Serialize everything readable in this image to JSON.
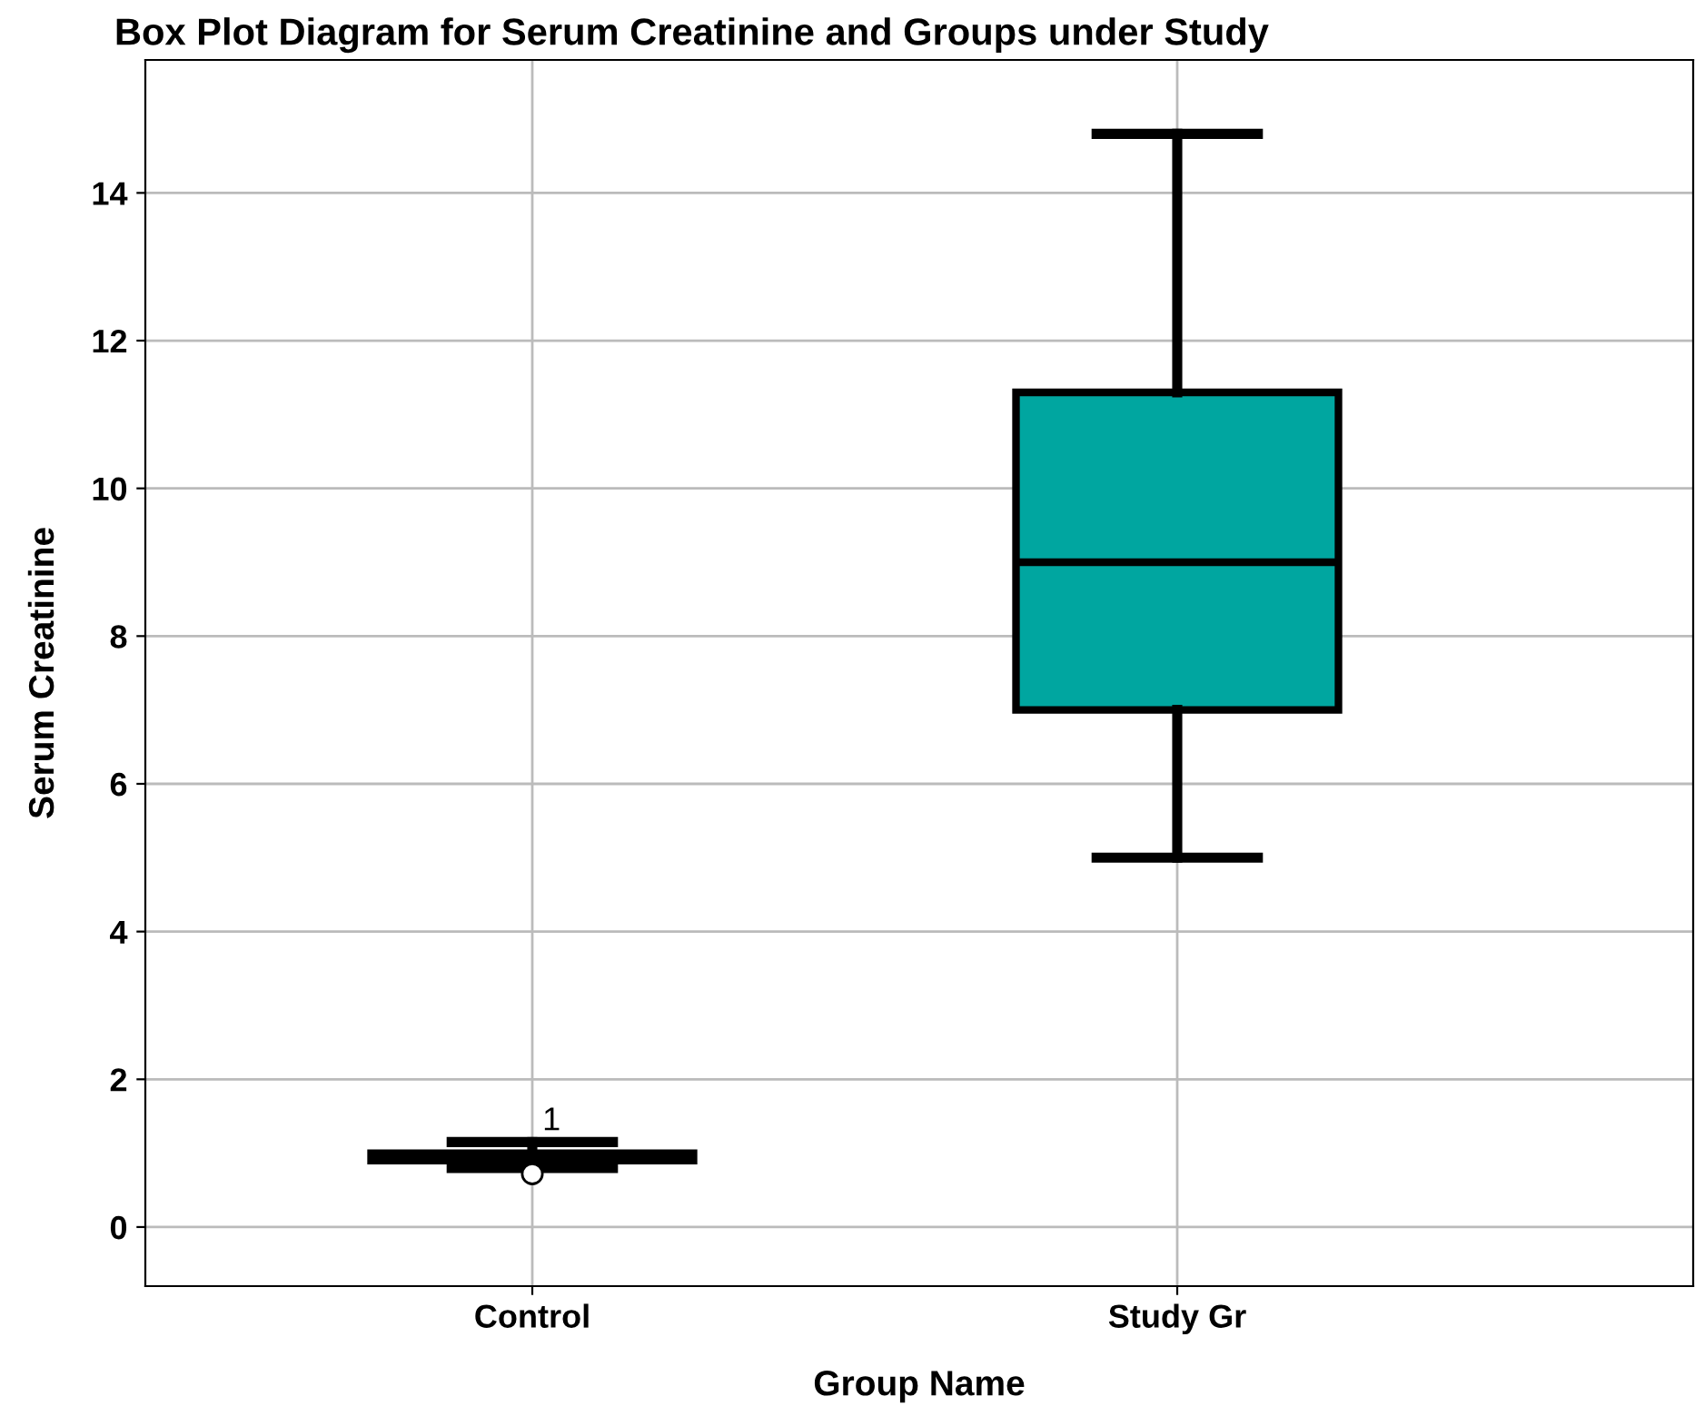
{
  "chart_data": {
    "type": "box",
    "title": "Box Plot Diagram for Serum Creatinine and Groups under Study",
    "xlabel": "Group Name",
    "ylabel": "Serum Creatinine",
    "categories": [
      "Control",
      "Study Gr"
    ],
    "series": [
      {
        "color": "#00a6a0",
        "boxes": [
          {
            "low": 0.8,
            "q1": 0.9,
            "median": 0.95,
            "q3": 1.0,
            "high": 1.15,
            "outliers": [
              0.72
            ]
          },
          {
            "low": 5.0,
            "q1": 7.0,
            "median": 9.0,
            "q3": 11.3,
            "high": 14.8
          }
        ]
      }
    ],
    "annotations": [
      "1"
    ],
    "ylim": [
      -0.8,
      15.8
    ],
    "yticks": [
      0,
      2,
      4,
      6,
      8,
      10,
      12,
      14
    ],
    "grid": true
  }
}
